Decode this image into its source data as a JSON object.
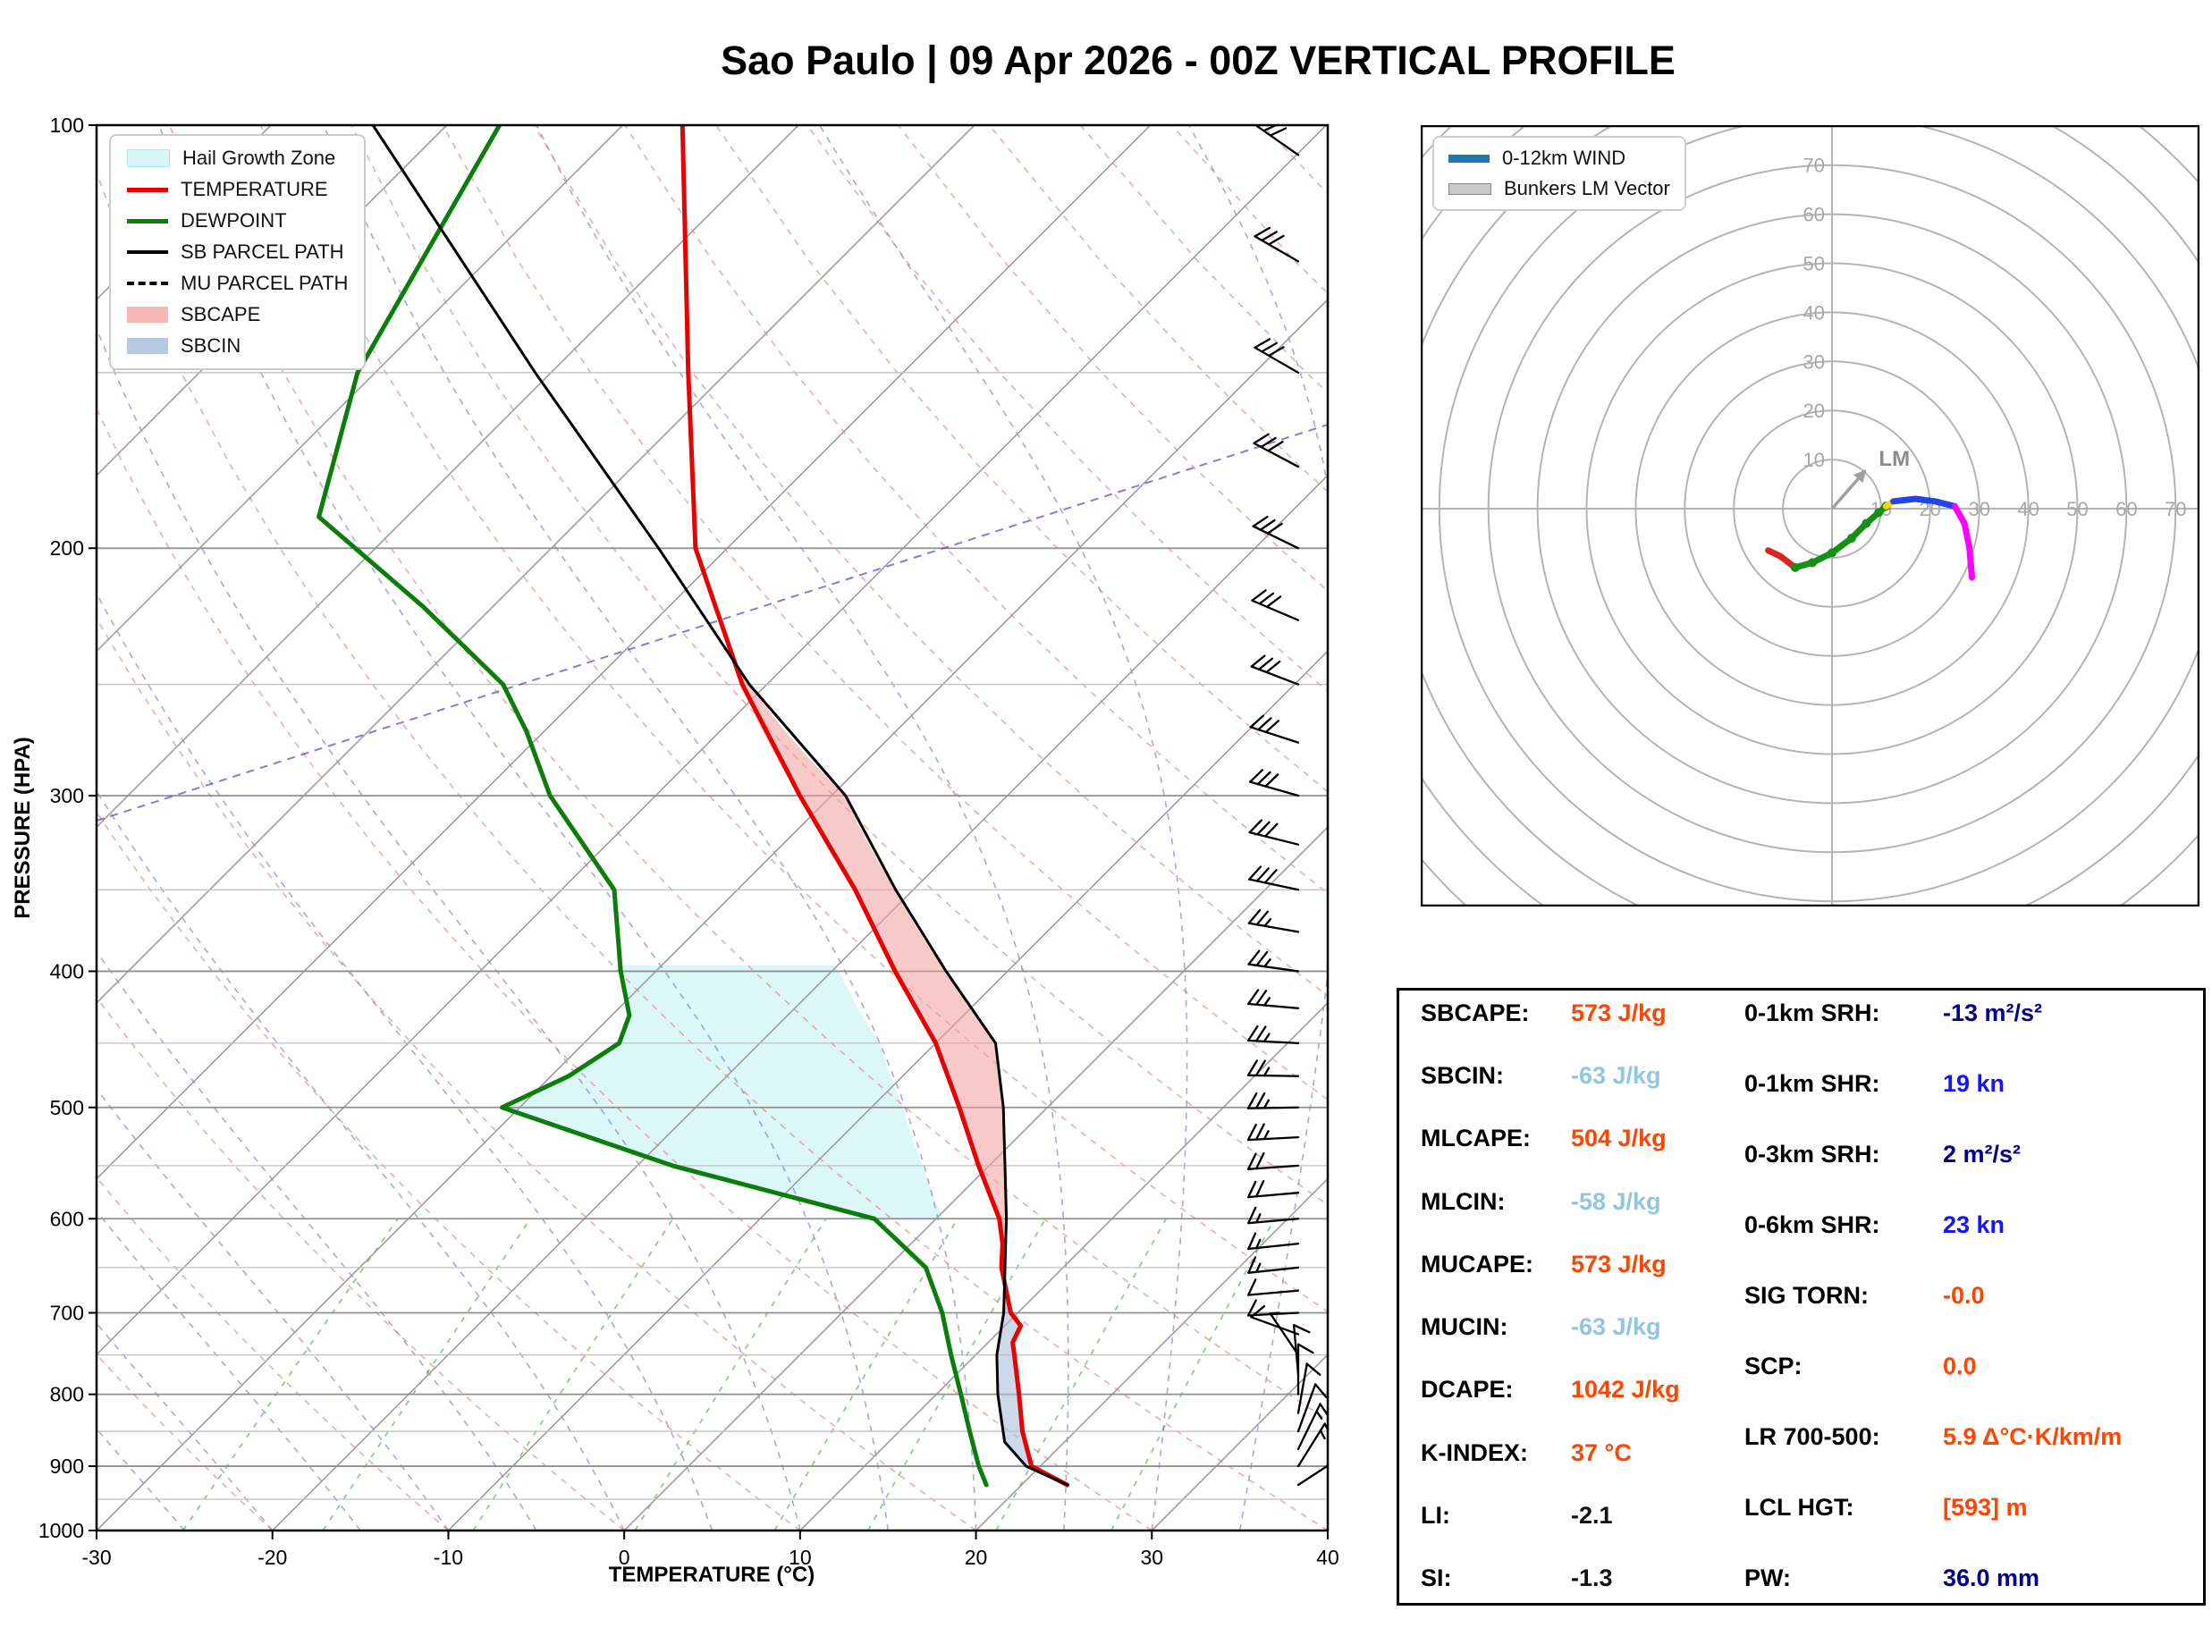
{
  "title": "Sao Paulo | 09 Apr 2026 - 00Z VERTICAL PROFILE",
  "legend": {
    "items": [
      {
        "label": "Hail Growth Zone"
      },
      {
        "label": "TEMPERATURE"
      },
      {
        "label": "DEWPOINT"
      },
      {
        "label": "SB PARCEL PATH"
      },
      {
        "label": "MU PARCEL PATH"
      },
      {
        "label": "SBCAPE"
      },
      {
        "label": "SBCIN"
      }
    ]
  },
  "hodo_legend": {
    "items": [
      {
        "label": "0-12km WIND"
      },
      {
        "label": "Bunkers LM Vector"
      }
    ]
  },
  "stats": {
    "left": [
      {
        "label": "SBCAPE:",
        "value": "573 J/kg",
        "color": "#ff4500"
      },
      {
        "label": "SBCIN:",
        "value": "-63 J/kg",
        "color": "#92c5de"
      },
      {
        "label": "MLCAPE:",
        "value": "504 J/kg",
        "color": "#ff4500"
      },
      {
        "label": "MLCIN:",
        "value": "-58 J/kg",
        "color": "#92c5de"
      },
      {
        "label": "MUCAPE:",
        "value": "573 J/kg",
        "color": "#ff4500"
      },
      {
        "label": "MUCIN:",
        "value": "-63 J/kg",
        "color": "#92c5de"
      },
      {
        "label": "DCAPE:",
        "value": "1042 J/kg",
        "color": "#ff4500"
      },
      {
        "label": "K-INDEX:",
        "value": "37 °C",
        "color": "#ff4500"
      },
      {
        "label": "LI:",
        "value": "-2.1",
        "color": "#111111"
      },
      {
        "label": "SI:",
        "value": "-1.3",
        "color": "#111111"
      }
    ],
    "right": [
      {
        "label": "0-1km SRH:",
        "value": "-13 m²/s²",
        "color": "#00008b"
      },
      {
        "label": "0-1km SHR:",
        "value": "19 kn",
        "color": "#1414ff"
      },
      {
        "label": "0-3km SRH:",
        "value": "2 m²/s²",
        "color": "#00008b"
      },
      {
        "label": "0-6km SHR:",
        "value": "23 kn",
        "color": "#1414ff"
      },
      {
        "label": "SIG TORN:",
        "value": "-0.0",
        "color": "#ff4500"
      },
      {
        "label": "SCP:",
        "value": "0.0",
        "color": "#ff4500"
      },
      {
        "label": "LR 700-500:",
        "value": "5.9 Δ°C·K/km/m",
        "color": "#ff4500"
      },
      {
        "label": "LCL HGT:",
        "value": "[593] m",
        "color": "#ff4500"
      },
      {
        "label": "PW:",
        "value": "36.0 mm",
        "color": "#00008b"
      }
    ]
  },
  "chart_data": {
    "type": "line",
    "title": "Sao Paulo | 09 Apr 2026 - 00Z VERTICAL PROFILE",
    "xlabel": "TEMPERATURE (°C)",
    "ylabel": "PRESSURE (HPA)",
    "xlim": [
      -30,
      40
    ],
    "x_ticks": [
      -30,
      -20,
      -10,
      0,
      10,
      20,
      30,
      40
    ],
    "y_ticks": [
      100,
      200,
      300,
      400,
      500,
      600,
      700,
      800,
      900,
      1000
    ],
    "pressure_scale": "log",
    "series": [
      {
        "name": "TEMPERATURE",
        "color": "#e60000",
        "style": "solid",
        "points_p_t": [
          [
            100,
            -76.6
          ],
          [
            150,
            -62.2
          ],
          [
            200,
            -51.8
          ],
          [
            250,
            -41.4
          ],
          [
            300,
            -31.8
          ],
          [
            350,
            -23.3
          ],
          [
            400,
            -16.4
          ],
          [
            450,
            -10
          ],
          [
            500,
            -5
          ],
          [
            550,
            -0.6
          ],
          [
            600,
            3.6
          ],
          [
            625,
            5.2
          ],
          [
            650,
            6.5
          ],
          [
            700,
            9.6
          ],
          [
            715,
            10.9
          ],
          [
            735,
            11.4
          ],
          [
            750,
            12.2
          ],
          [
            800,
            14.7
          ],
          [
            850,
            17
          ],
          [
            900,
            19.5
          ],
          [
            928,
            22.6
          ]
        ]
      },
      {
        "name": "DEWPOINT",
        "color": "#0a7d0a",
        "style": "solid",
        "points_p_t": [
          [
            100,
            -87
          ],
          [
            150,
            -81
          ],
          [
            190,
            -75
          ],
          [
            220,
            -64
          ],
          [
            250,
            -55
          ],
          [
            270,
            -51
          ],
          [
            300,
            -46
          ],
          [
            350,
            -37
          ],
          [
            400,
            -32
          ],
          [
            430,
            -29
          ],
          [
            450,
            -28
          ],
          [
            475,
            -29
          ],
          [
            500,
            -31
          ],
          [
            550,
            -18
          ],
          [
            600,
            -3.5
          ],
          [
            650,
            2.2
          ],
          [
            700,
            5.7
          ],
          [
            750,
            8.6
          ],
          [
            800,
            11.4
          ],
          [
            850,
            14
          ],
          [
            900,
            16.5
          ],
          [
            928,
            18
          ]
        ]
      },
      {
        "name": "SB PARCEL PATH",
        "color": "#000000",
        "style": "solid",
        "points_p_t": [
          [
            100,
            -94.2
          ],
          [
            150,
            -70.9
          ],
          [
            200,
            -53.9
          ],
          [
            250,
            -41
          ],
          [
            300,
            -29.2
          ],
          [
            350,
            -21
          ],
          [
            400,
            -13.5
          ],
          [
            450,
            -6.6
          ],
          [
            500,
            -2.5
          ],
          [
            550,
            0.9
          ],
          [
            600,
            4
          ],
          [
            650,
            6.7
          ],
          [
            700,
            9.2
          ],
          [
            750,
            11.2
          ],
          [
            800,
            13.5
          ],
          [
            850,
            15.9
          ],
          [
            865,
            16.6
          ],
          [
            900,
            19.2
          ],
          [
            928,
            22.6
          ]
        ]
      },
      {
        "name": "MU PARCEL PATH",
        "color": "#000000",
        "style": "dashed",
        "points_p_t": [
          [
            100,
            -94.2
          ],
          [
            150,
            -70.9
          ],
          [
            200,
            -53.9
          ],
          [
            250,
            -41
          ],
          [
            300,
            -29.2
          ],
          [
            350,
            -21
          ],
          [
            400,
            -13.5
          ],
          [
            450,
            -6.6
          ],
          [
            500,
            -2.5
          ],
          [
            550,
            0.9
          ],
          [
            600,
            4
          ],
          [
            650,
            6.7
          ],
          [
            700,
            9.2
          ],
          [
            750,
            11.2
          ],
          [
            800,
            13.5
          ],
          [
            850,
            15.9
          ],
          [
            865,
            16.6
          ],
          [
            900,
            19.2
          ],
          [
            928,
            22.6
          ]
        ]
      }
    ],
    "shading": {
      "hail_growth_zone": {
        "color": "#d8f6f6",
        "p_top": 396,
        "p_bottom": 600
      },
      "sbcape": {
        "color": "#f29d9d"
      },
      "sbcin": {
        "color": "#a9c0dc"
      }
    },
    "wind_barbs_kn": [
      [
        105,
        28,
        305
      ],
      [
        125,
        29,
        300
      ],
      [
        150,
        30,
        300
      ],
      [
        175,
        31,
        298
      ],
      [
        200,
        32,
        296
      ],
      [
        225,
        31,
        293
      ],
      [
        250,
        30,
        291
      ],
      [
        275,
        29,
        288
      ],
      [
        300,
        29,
        286
      ],
      [
        325,
        28,
        284
      ],
      [
        350,
        28,
        282
      ],
      [
        375,
        27,
        280
      ],
      [
        400,
        27,
        278
      ],
      [
        425,
        26,
        275
      ],
      [
        450,
        26,
        273
      ],
      [
        475,
        25,
        271
      ],
      [
        500,
        25,
        269
      ],
      [
        525,
        23,
        267
      ],
      [
        550,
        21,
        266
      ],
      [
        575,
        19,
        265
      ],
      [
        600,
        17,
        265
      ],
      [
        625,
        15,
        264
      ],
      [
        650,
        14,
        264
      ],
      [
        675,
        12,
        265
      ],
      [
        700,
        11,
        267
      ],
      [
        725,
        9,
        290
      ],
      [
        750,
        7,
        326
      ],
      [
        775,
        8,
        355
      ],
      [
        800,
        9,
        0
      ],
      [
        825,
        10,
        10
      ],
      [
        850,
        12,
        20
      ],
      [
        875,
        13,
        26
      ],
      [
        900,
        14,
        32
      ],
      [
        928,
        15,
        57
      ]
    ],
    "hodograph": {
      "ring_step_kn": 10,
      "ring_labels": [
        10,
        20,
        30,
        40,
        50,
        60,
        70
      ],
      "segments": [
        {
          "color": "#dd2222",
          "points_uv_kn": [
            [
              -13,
              -8.5
            ],
            [
              -10.5,
              -9.7
            ],
            [
              -7.5,
              -12
            ]
          ]
        },
        {
          "color": "#159015",
          "markers": true,
          "points_uv_kn": [
            [
              -7.5,
              -12
            ],
            [
              -4,
              -11
            ],
            [
              0,
              -9
            ],
            [
              4,
              -6
            ],
            [
              7,
              -3
            ],
            [
              9.5,
              -0.8
            ],
            [
              11,
              0.5
            ]
          ]
        },
        {
          "color": "#ffd500",
          "points_uv_kn": [
            [
              11,
              0.5
            ],
            [
              12.5,
              1.5
            ]
          ]
        },
        {
          "color": "#2244ee",
          "points_uv_kn": [
            [
              12.5,
              1.5
            ],
            [
              17,
              2
            ],
            [
              21,
              1.5
            ],
            [
              25,
              0.5
            ]
          ]
        },
        {
          "color": "#ff00ff",
          "points_uv_kn": [
            [
              25,
              0.5
            ],
            [
              27,
              -3
            ],
            [
              28,
              -8
            ],
            [
              28.5,
              -14
            ]
          ]
        }
      ],
      "lm_vector_uv_kn": [
        7,
        8
      ],
      "lm_label": "LM"
    }
  }
}
